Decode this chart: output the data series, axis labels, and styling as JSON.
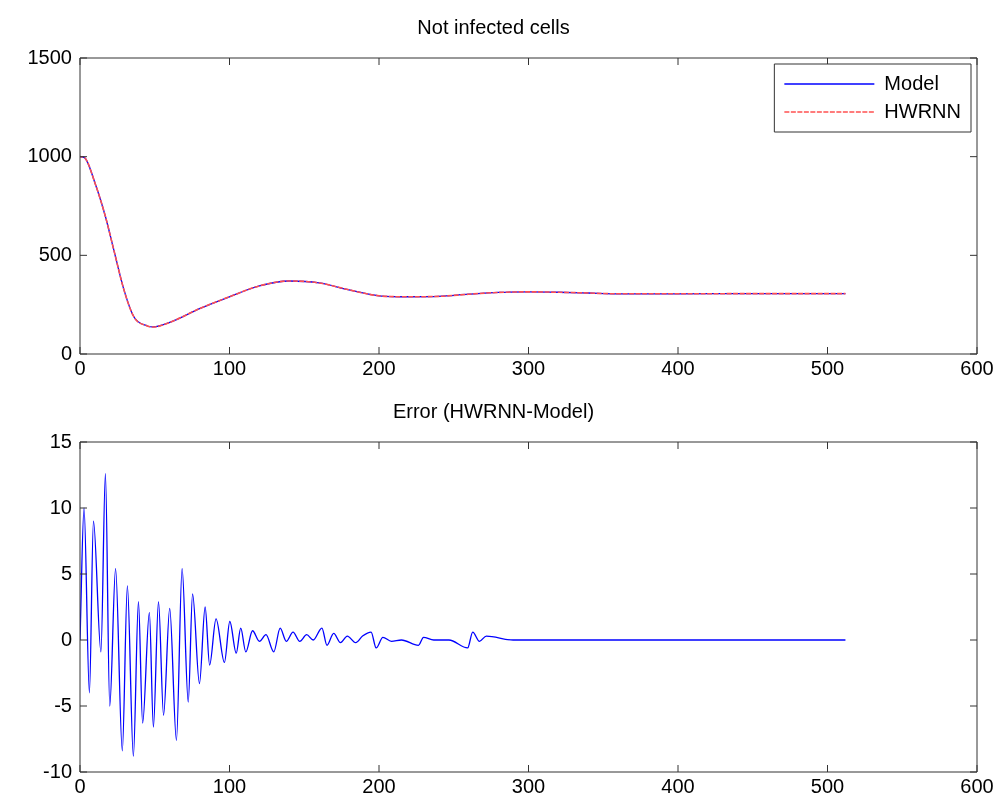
{
  "chart_data": [
    {
      "type": "line",
      "title": "Not infected cells",
      "xlim": [
        0,
        600
      ],
      "xticks": [
        0,
        100,
        200,
        300,
        400,
        500,
        600
      ],
      "ylim": [
        0,
        1500
      ],
      "yticks": [
        0,
        500,
        1000,
        1500
      ],
      "grid": false,
      "legend": "top right",
      "series": [
        {
          "name": "Model",
          "color": "#0000ff",
          "line_style": "solid",
          "x": [
            0,
            3,
            10,
            17,
            22.6,
            29.4,
            36,
            45,
            49,
            60,
            80,
            100,
            120,
            140,
            160,
            180,
            200,
            220,
            240,
            260,
            280,
            300,
            320,
            340,
            360,
            400,
            450,
            512
          ],
          "values": [
            1000,
            995,
            867,
            697,
            528,
            325,
            189,
            142,
            137,
            160,
            230,
            290,
            345,
            370,
            360,
            325,
            295,
            290,
            292,
            303,
            312,
            315,
            313,
            309,
            305,
            305,
            306,
            306
          ]
        },
        {
          "name": "HWRNN",
          "color": "#ff5050",
          "line_style": "dashed",
          "x": [
            0,
            3,
            10,
            17,
            22.6,
            29.4,
            36,
            45,
            49,
            60,
            80,
            100,
            120,
            140,
            160,
            180,
            200,
            220,
            240,
            260,
            280,
            300,
            320,
            340,
            360,
            400,
            450,
            512
          ],
          "values": [
            1000,
            995,
            867,
            697,
            528,
            325,
            189,
            142,
            137,
            160,
            230,
            290,
            345,
            370,
            360,
            325,
            295,
            290,
            292,
            303,
            312,
            315,
            313,
            309,
            305,
            305,
            306,
            306
          ]
        }
      ]
    },
    {
      "type": "line",
      "title": "Error (HWRNN-Model)",
      "xlim": [
        0,
        600
      ],
      "xticks": [
        0,
        100,
        200,
        300,
        400,
        500,
        600
      ],
      "ylim": [
        -10,
        15
      ],
      "yticks": [
        -10,
        -5,
        0,
        5,
        10,
        15
      ],
      "grid": false,
      "legend": false,
      "series": [
        {
          "color": "#0000ff",
          "line_style": "solid",
          "x": [
            0,
            2.7,
            6.3,
            9,
            14,
            17,
            19.9,
            23.8,
            28.3,
            31.7,
            35.7,
            39.1,
            41.9,
            46.4,
            49.1,
            52.5,
            55.9,
            60,
            64.5,
            68.3,
            72.4,
            75.3,
            79.9,
            83.7,
            86.7,
            91,
            96.6,
            100.2,
            104.5,
            107.5,
            110.9,
            115.4,
            120,
            124.4,
            129.6,
            133.9,
            138,
            142.5,
            147,
            151.6,
            156,
            161.8,
            165.2,
            169.7,
            174.2,
            178.8,
            184.4,
            189,
            194.7,
            198.1,
            202.6,
            208.3,
            215,
            226.4,
            229.8,
            236.6,
            246.8,
            259.3,
            262.7,
            267.2,
            271.8,
            289.7,
            350,
            400,
            450,
            512
          ],
          "values": [
            0,
            10,
            -4,
            9,
            -0.9,
            12.6,
            -5,
            5.4,
            -8.4,
            4.1,
            -8.8,
            2.9,
            -6.3,
            2.1,
            -6.6,
            2.9,
            -5.7,
            2.4,
            -7.6,
            5.4,
            -4.7,
            3.5,
            -3.3,
            2.5,
            -1.9,
            1.6,
            -1.7,
            1.4,
            -1,
            0.9,
            -0.9,
            0.7,
            -0.1,
            0.4,
            -0.9,
            0.9,
            -0.1,
            0.6,
            -0.1,
            0.4,
            0,
            0.9,
            -0.4,
            0.5,
            -0.2,
            0.3,
            -0.2,
            0.3,
            0.6,
            -0.6,
            0.2,
            -0.1,
            0,
            -0.4,
            0.2,
            0,
            0,
            -0.6,
            0.6,
            -0.1,
            0.3,
            0,
            0,
            0,
            0,
            0
          ]
        }
      ]
    }
  ]
}
